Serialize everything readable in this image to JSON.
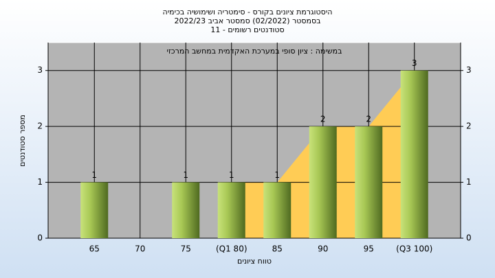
{
  "chart_data": {
    "type": "bar",
    "title": [
      "היסטוגרמת ציונים בקורס - סימטריה ושימושיה בכימיה",
      "בסמסטר  (02/2022)  סמסטר אביב 2022/23",
      "סטודנטים רשומים - 11"
    ],
    "subtitle": "במשימה : ציון סופי במערכת האקדמית במחשב המרכזי",
    "x_label": "טווח ציונים",
    "y_label": "מספר סטודנטים",
    "categories": [
      "65",
      "70",
      "75",
      "(Q1 80)",
      "85",
      "90",
      "95",
      "(Q3 100)"
    ],
    "values": [
      1,
      0,
      1,
      1,
      1,
      2,
      2,
      3
    ],
    "value_labels": [
      "1",
      null,
      "1",
      "1",
      "1",
      "2",
      "2",
      "3"
    ],
    "ylim": [
      0,
      3.5
    ],
    "yticks": [
      0,
      1,
      2,
      3
    ],
    "y2lim": [
      0,
      3.5
    ],
    "y2ticks": [
      0,
      1,
      2,
      3
    ],
    "grid": true,
    "color": "#8fb040",
    "area_color": "#ffcc55"
  }
}
